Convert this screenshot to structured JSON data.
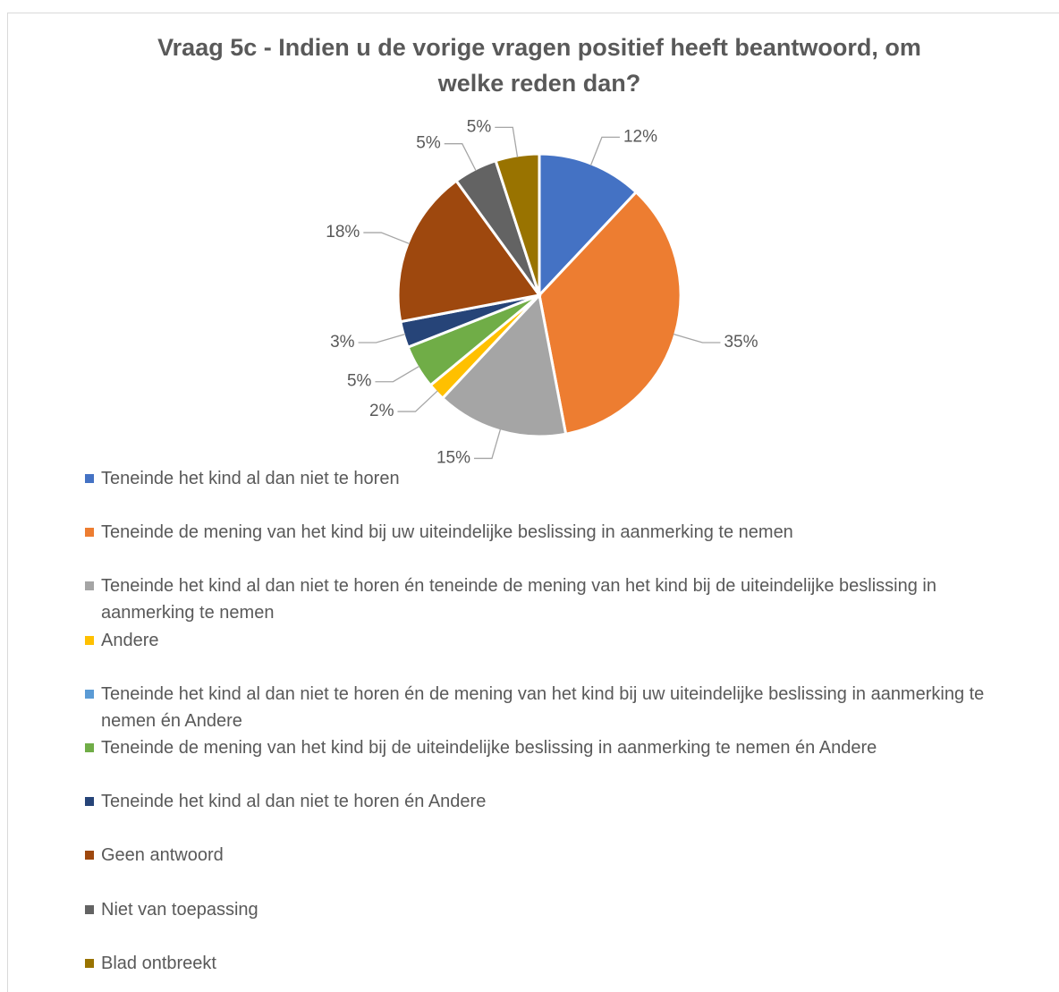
{
  "chart_data": {
    "type": "pie",
    "title": "Vraag 5c - Indien u de vorige vragen positief heeft beantwoord, om welke reden dan?",
    "categories": [
      "Teneinde het kind al dan niet te horen",
      "Teneinde de mening van het kind bij uw uiteindelijke beslissing in aanmerking te nemen",
      "Teneinde het kind al dan niet te horen én teneinde de mening van het kind bij de uiteindelijke beslissing in aanmerking te nemen",
      "Andere",
      "Teneinde het kind al dan niet te horen én de mening van het kind bij uw uiteindelijke beslissing in aanmerking te nemen én Andere",
      "Teneinde de mening van het kind bij de uiteindelijke beslissing in aanmerking te nemen én Andere",
      "Teneinde het kind al dan niet te horen én Andere",
      "Geen antwoord",
      "Niet van toepassing",
      "Blad ontbreekt"
    ],
    "values": [
      12,
      35,
      15,
      2,
      0,
      5,
      3,
      18,
      5,
      5
    ],
    "value_labels": [
      "12%",
      "35%",
      "15%",
      "2%",
      null,
      "5%",
      "3%",
      "18%",
      "5%",
      "5%"
    ],
    "colors": [
      "#4472c4",
      "#ed7d31",
      "#a5a5a5",
      "#ffc000",
      "#5b9bd5",
      "#70ad47",
      "#264478",
      "#9e480e",
      "#636363",
      "#997300"
    ],
    "legend": "bottom"
  }
}
